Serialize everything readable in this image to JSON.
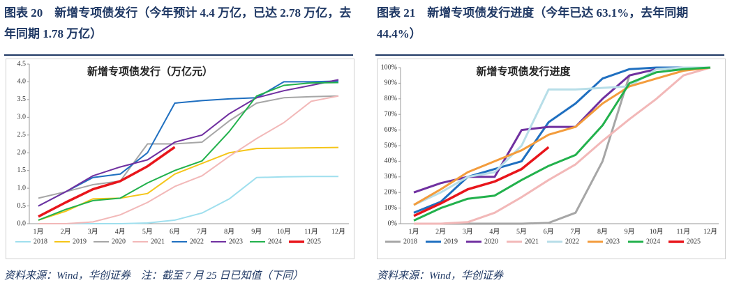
{
  "chart_data": [
    {
      "type": "line",
      "caption": "图表 20　新增专项债发行（今年预计 4.4 万亿，已达 2.78 万亿，去年同期 1.78 万亿）",
      "title": "新增专项债发行（万亿元）",
      "source": "资料来源：Wind，华创证券　注：截至 7 月 25 日已知值（下同）",
      "categories": [
        "1月",
        "2月",
        "3月",
        "4月",
        "5月",
        "6月",
        "7月",
        "8月",
        "9月",
        "10月",
        "11月",
        "12月"
      ],
      "ylim": [
        0,
        4.5
      ],
      "yticks": [
        {
          "value": 0,
          "label": "0.0"
        },
        0.5,
        {
          "value": 1,
          "label": "1.0"
        },
        1.5,
        {
          "value": 2,
          "label": "2.0"
        },
        2.5,
        {
          "value": 3,
          "label": "3.0"
        },
        3.5,
        {
          "value": 4,
          "label": "4.0"
        },
        4.5
      ],
      "series": [
        {
          "name": "2018",
          "color": "#9fdfee",
          "values": [
            0,
            0,
            0,
            0,
            0.02,
            0.1,
            0.3,
            0.7,
            1.3,
            1.32,
            1.33,
            1.33
          ]
        },
        {
          "name": "2019",
          "color": "#f5c518",
          "values": [
            0.1,
            0.35,
            0.7,
            0.72,
            0.85,
            1.4,
            1.7,
            2.0,
            2.12,
            2.13,
            2.14,
            2.15
          ]
        },
        {
          "name": "2020",
          "color": "#a6a6a6",
          "values": [
            0.72,
            0.9,
            1.1,
            1.2,
            2.25,
            2.25,
            2.3,
            2.9,
            3.4,
            3.55,
            3.58,
            3.6
          ]
        },
        {
          "name": "2021",
          "color": "#f2b8b8",
          "values": [
            0,
            0,
            0.05,
            0.25,
            0.6,
            1.05,
            1.35,
            1.9,
            2.4,
            2.85,
            3.45,
            3.6
          ]
        },
        {
          "name": "2022",
          "color": "#1f6fc0",
          "values": [
            0.5,
            0.9,
            1.3,
            1.4,
            2.0,
            3.4,
            3.47,
            3.52,
            3.55,
            4.0,
            4.0,
            4.02
          ]
        },
        {
          "name": "2023",
          "color": "#7030a0",
          "values": [
            0.5,
            0.9,
            1.35,
            1.6,
            1.8,
            2.3,
            2.5,
            3.1,
            3.55,
            3.75,
            3.9,
            4.06
          ]
        },
        {
          "name": "2024",
          "color": "#22b14c",
          "values": [
            0.1,
            0.4,
            0.65,
            0.72,
            1.15,
            1.5,
            1.77,
            2.6,
            3.6,
            3.9,
            3.97,
            3.98
          ]
        },
        {
          "name": "2025",
          "color": "#e8151b",
          "values": [
            0.2,
            0.6,
            0.97,
            1.2,
            1.62,
            2.16,
            null,
            null,
            null,
            null,
            null,
            null
          ]
        }
      ]
    },
    {
      "type": "line",
      "caption": "图表 21　新增专项债发行进度（今年已达 63.1%，去年同期 44.4%）",
      "title": "新增专项债发行进度",
      "source": "资料来源：Wind，华创证券",
      "categories": [
        "1月",
        "2月",
        "3月",
        "4月",
        "5月",
        "6月",
        "7月",
        "8月",
        "9月",
        "10月",
        "11月",
        "12月"
      ],
      "ylim": [
        0,
        100
      ],
      "yticks": [
        {
          "value": 0,
          "label": "0%"
        },
        {
          "value": 10,
          "label": "10%"
        },
        {
          "value": 20,
          "label": "20%"
        },
        {
          "value": 30,
          "label": "30%"
        },
        {
          "value": 40,
          "label": "40%"
        },
        {
          "value": 50,
          "label": "50%"
        },
        {
          "value": 60,
          "label": "60%"
        },
        {
          "value": 70,
          "label": "70%"
        },
        {
          "value": 80,
          "label": "80%"
        },
        {
          "value": 90,
          "label": "90%"
        },
        {
          "value": 100,
          "label": "100%"
        }
      ],
      "series": [
        {
          "name": "2018",
          "color": "#a6a6a6",
          "values": [
            0,
            0,
            0,
            0,
            0,
            0.5,
            7,
            40,
            95,
            99,
            100,
            100
          ]
        },
        {
          "name": "2019",
          "color": "#1f6fc0",
          "values": [
            7,
            14,
            30,
            35,
            40,
            65,
            77,
            93,
            99,
            100,
            100,
            100
          ]
        },
        {
          "name": "2020",
          "color": "#7030a0",
          "values": [
            20,
            26,
            30,
            30,
            60,
            62,
            62,
            80,
            95,
            99,
            100,
            100
          ]
        },
        {
          "name": "2021",
          "color": "#f2b8b8",
          "values": [
            0,
            0,
            1,
            7,
            17,
            28,
            38,
            53,
            67,
            80,
            95,
            100
          ]
        },
        {
          "name": "2022",
          "color": "#b7dee8",
          "values": [
            12,
            20,
            30,
            33,
            50,
            86,
            86,
            87,
            88,
            99,
            100,
            100
          ]
        },
        {
          "name": "2023",
          "color": "#f39c3c",
          "values": [
            12,
            22,
            33,
            40,
            47,
            57,
            62,
            77,
            88,
            93,
            98,
            100
          ]
        },
        {
          "name": "2024",
          "color": "#22b14c",
          "values": [
            2,
            10,
            16,
            18,
            28,
            37,
            44,
            63,
            90,
            97,
            99,
            100
          ]
        },
        {
          "name": "2025",
          "color": "#e8151b",
          "values": [
            5,
            13,
            22,
            27,
            35,
            49,
            null,
            null,
            null,
            null,
            null,
            null
          ]
        }
      ]
    }
  ]
}
